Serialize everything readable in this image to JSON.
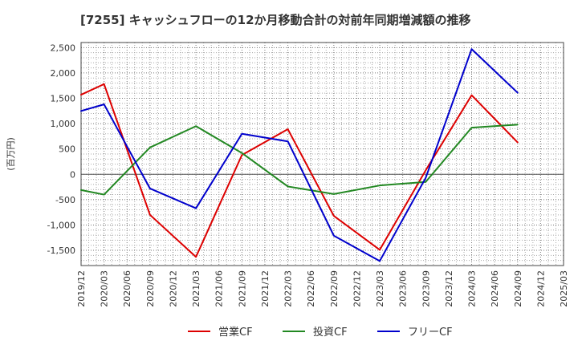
{
  "chart_data": {
    "type": "line",
    "title": "[7255]  キャッシュフローの12か月移動合計の対前年同期増減額の推移",
    "ylabel": "(百万円)",
    "xlabel": "",
    "ylim": [
      -1800,
      2600
    ],
    "yticks": [
      -1500,
      -1000,
      -500,
      0,
      500,
      1000,
      1500,
      2000,
      2500
    ],
    "ytick_labels": [
      "-1,500",
      "-1,000",
      "-500",
      "0",
      "500",
      "1,000",
      "1,500",
      "2,000",
      "2,500"
    ],
    "categories": [
      "2019/12",
      "2020/03",
      "2020/06",
      "2020/09",
      "2020/12",
      "2021/03",
      "2021/06",
      "2021/09",
      "2021/12",
      "2022/03",
      "2022/06",
      "2022/09",
      "2022/12",
      "2023/03",
      "2023/06",
      "2023/09",
      "2023/12",
      "2024/03",
      "2024/06",
      "2024/09",
      "2024/12",
      "2025/03"
    ],
    "grid": true,
    "legend_position": "bottom",
    "series": [
      {
        "name": "営業CF",
        "color": "#dd0000",
        "points": [
          [
            "2019/12",
            1570
          ],
          [
            "2020/03",
            1780
          ],
          [
            "2020/09",
            -800
          ],
          [
            "2021/03",
            -1630
          ],
          [
            "2021/09",
            380
          ],
          [
            "2022/03",
            890
          ],
          [
            "2022/09",
            -820
          ],
          [
            "2023/03",
            -1490
          ],
          [
            "2023/09",
            80
          ],
          [
            "2024/03",
            1560
          ],
          [
            "2024/09",
            630
          ]
        ]
      },
      {
        "name": "投資CF",
        "color": "#228822",
        "points": [
          [
            "2019/12",
            -310
          ],
          [
            "2020/03",
            -400
          ],
          [
            "2020/09",
            530
          ],
          [
            "2021/03",
            950
          ],
          [
            "2021/09",
            420
          ],
          [
            "2022/03",
            -240
          ],
          [
            "2022/09",
            -390
          ],
          [
            "2023/03",
            -220
          ],
          [
            "2023/09",
            -150
          ],
          [
            "2024/03",
            920
          ],
          [
            "2024/09",
            980
          ]
        ]
      },
      {
        "name": "フリーCF",
        "color": "#0000cc",
        "points": [
          [
            "2019/12",
            1250
          ],
          [
            "2020/03",
            1380
          ],
          [
            "2020/09",
            -280
          ],
          [
            "2021/03",
            -670
          ],
          [
            "2021/09",
            800
          ],
          [
            "2022/03",
            650
          ],
          [
            "2022/09",
            -1210
          ],
          [
            "2023/03",
            -1710
          ],
          [
            "2023/09",
            -70
          ],
          [
            "2024/03",
            2470
          ],
          [
            "2024/09",
            1610
          ]
        ]
      }
    ]
  }
}
